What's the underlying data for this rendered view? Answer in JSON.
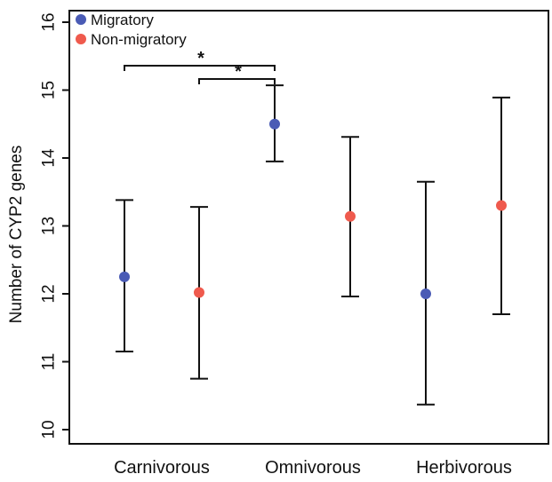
{
  "chart_data": {
    "type": "scatter",
    "title": "",
    "xlabel": "",
    "ylabel": "Number of CYP2 genes",
    "ylim": [
      10,
      16
    ],
    "yticks": [
      10,
      11,
      12,
      13,
      14,
      15,
      16
    ],
    "grid": false,
    "legend_position": "top-left",
    "categories": [
      "Carnivorous",
      "Omnivorous",
      "Herbivorous"
    ],
    "series": [
      {
        "name": "Migratory",
        "color": "#4a5bb5",
        "mean": [
          12.25,
          14.5,
          12.0
        ],
        "lower": [
          11.15,
          13.95,
          10.37
        ],
        "upper": [
          13.38,
          15.07,
          13.65
        ]
      },
      {
        "name": "Non-migratory",
        "color": "#ef5a4d",
        "mean": [
          12.02,
          13.14,
          13.3
        ],
        "lower": [
          10.75,
          11.96,
          11.7
        ],
        "upper": [
          13.28,
          14.31,
          14.89
        ]
      }
    ],
    "significance": [
      {
        "from": "Carnivorous Migratory",
        "to": "Omnivorous Migratory",
        "label": "*"
      },
      {
        "from": "Carnivorous Non-migratory",
        "to": "Omnivorous Migratory",
        "label": "*"
      }
    ]
  }
}
